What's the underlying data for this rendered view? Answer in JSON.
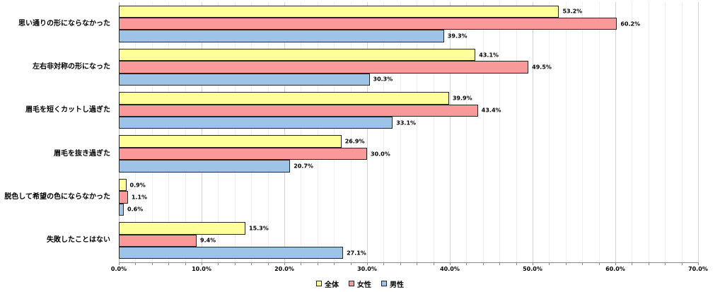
{
  "chart_data": {
    "type": "bar",
    "orientation": "horizontal",
    "title": "",
    "categories": [
      "思い通りの形にならなかった",
      "左右非対称の形になった",
      "眉毛を短くカットし過ぎた",
      "眉毛を抜き過ぎた",
      "脱色して希望の色にならなかった",
      "失敗したことはない"
    ],
    "series": [
      {
        "name": "全体",
        "color": "#FFFF99",
        "values": [
          53.2,
          43.1,
          39.9,
          26.9,
          0.9,
          15.3
        ]
      },
      {
        "name": "女性",
        "color": "#FA9999",
        "values": [
          60.2,
          49.5,
          43.4,
          30.0,
          1.1,
          9.4
        ]
      },
      {
        "name": "男性",
        "color": "#9DC3E6",
        "values": [
          39.3,
          30.3,
          33.1,
          20.7,
          0.6,
          27.1
        ]
      }
    ],
    "xlim": [
      0,
      70
    ],
    "x_major_step": 10,
    "x_minor_step": 2,
    "x_tick_labels": [
      "0.0%",
      "10.0%",
      "20.0%",
      "30.0%",
      "40.0%",
      "50.0%",
      "60.0%",
      "70.0%"
    ],
    "value_label_suffix": "%",
    "grid": true,
    "legend_position": "bottom",
    "bar_border_color": "#262626"
  }
}
